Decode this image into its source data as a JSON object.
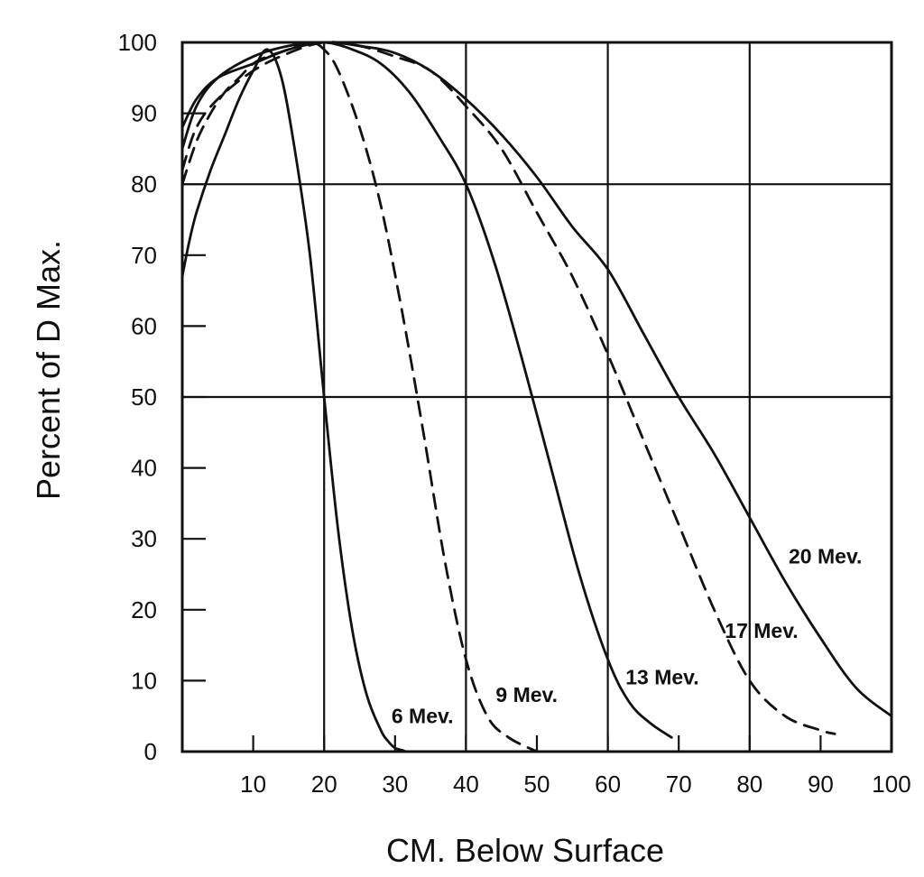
{
  "chart_data": {
    "type": "line",
    "title": "",
    "xlabel": "CM.  Below Surface",
    "ylabel": "Percent of D Max.",
    "xlim": [
      0,
      100
    ],
    "ylim": [
      0,
      100
    ],
    "x_ticks": [
      10,
      20,
      30,
      40,
      50,
      60,
      70,
      80,
      90,
      100
    ],
    "y_ticks": [
      0,
      10,
      20,
      30,
      40,
      50,
      60,
      70,
      80,
      90,
      100
    ],
    "grid": true,
    "series": [
      {
        "name": "6 Mev.",
        "style": "solid",
        "x": [
          0,
          1,
          2,
          4,
          6,
          8,
          10,
          12,
          14,
          16,
          18,
          20,
          22,
          24,
          26,
          28,
          29,
          30,
          31,
          31.5
        ],
        "y": [
          67,
          72,
          76,
          82,
          87,
          92,
          96,
          99,
          95,
          84,
          70,
          50,
          31,
          17,
          8,
          3,
          1.5,
          0.5,
          0.2,
          0
        ]
      },
      {
        "name": "9 Mev.",
        "style": "dashed",
        "x": [
          0,
          2,
          4,
          6,
          8,
          10,
          12,
          15,
          18,
          20,
          22,
          25,
          28,
          31,
          34,
          37,
          40,
          43,
          46,
          50
        ],
        "y": [
          80,
          86,
          90,
          93,
          95,
          97,
          98,
          99,
          100,
          99,
          96,
          88,
          77,
          62,
          45,
          27,
          13,
          5,
          2,
          0
        ]
      },
      {
        "name": "13 Mev.",
        "style": "solid",
        "x": [
          0,
          2,
          5,
          10,
          15,
          20,
          24,
          28,
          32,
          36,
          40,
          44,
          48,
          52,
          56,
          60,
          63,
          66,
          69
        ],
        "y": [
          85,
          91,
          95,
          98,
          99.5,
          100,
          99,
          97,
          93,
          87,
          80,
          69,
          55,
          40,
          25,
          13,
          7,
          4,
          2
        ]
      },
      {
        "name": "17 Mev.",
        "style": "dashed",
        "x": [
          0,
          2,
          5,
          10,
          15,
          20,
          25,
          30,
          35,
          40,
          45,
          50,
          55,
          60,
          65,
          70,
          75,
          80,
          85,
          90,
          92
        ],
        "y": [
          82,
          88,
          92,
          96,
          98.5,
          100,
          99.5,
          98,
          96,
          91,
          85,
          76,
          67,
          56,
          44,
          32,
          20,
          10,
          5,
          3,
          2.5
        ]
      },
      {
        "name": "20 Mev.",
        "style": "solid",
        "x": [
          0,
          2,
          5,
          10,
          15,
          20,
          25,
          30,
          35,
          40,
          45,
          50,
          55,
          60,
          65,
          70,
          75,
          80,
          85,
          90,
          95,
          100
        ],
        "y": [
          88,
          92,
          95,
          97,
          99,
          100,
          99.5,
          98.5,
          96,
          92,
          87,
          81,
          74,
          68,
          59,
          50,
          42,
          33,
          24,
          16,
          9,
          5
        ]
      }
    ]
  }
}
